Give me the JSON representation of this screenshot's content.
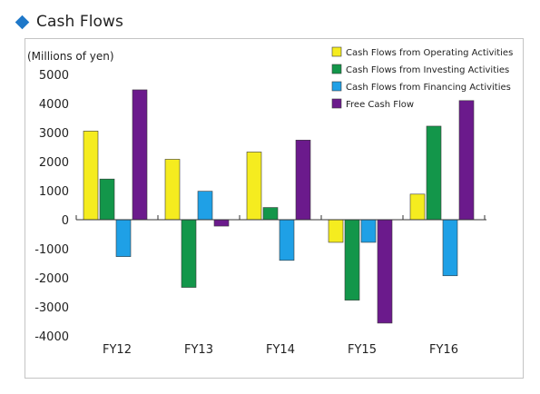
{
  "header": {
    "title": "Cash Flows",
    "icon": "diamond-icon",
    "icon_color": "#1f78c9"
  },
  "chart_data": {
    "type": "bar",
    "title": "",
    "xlabel": "",
    "ylabel": "(Millions of yen)",
    "ylim": [
      -4000,
      5000
    ],
    "yticks": [
      5000,
      4000,
      3000,
      2000,
      1000,
      0,
      -1000,
      -2000,
      -3000,
      -4000
    ],
    "grid": false,
    "legend_position": "top-right",
    "categories": [
      "FY12",
      "FY13",
      "FY14",
      "FY15",
      "FY16"
    ],
    "series": [
      {
        "name": "Cash Flows from Operating Activities",
        "color": "#f5ec1f",
        "values": [
          3050,
          2080,
          2330,
          -780,
          880
        ]
      },
      {
        "name": "Cash Flows from Investing Activities",
        "color": "#13964a",
        "values": [
          1400,
          -2330,
          420,
          -2770,
          3220
        ]
      },
      {
        "name": "Cash Flows from Financing Activities",
        "color": "#1fa0e6",
        "values": [
          -1270,
          980,
          -1400,
          -780,
          -1930
        ]
      },
      {
        "name": "Free Cash Flow",
        "color": "#6b1a8c",
        "values": [
          4470,
          -220,
          2740,
          -3560,
          4100
        ]
      }
    ]
  }
}
